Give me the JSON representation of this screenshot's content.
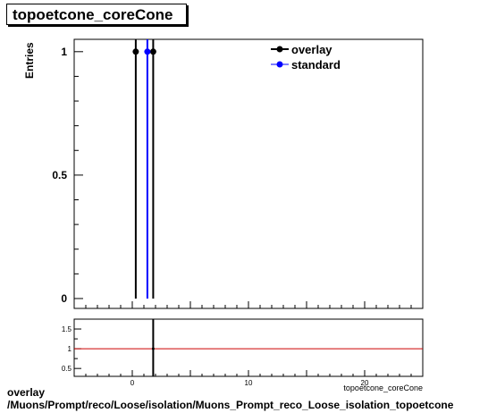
{
  "title": "topoetcone_coreCone",
  "footer": {
    "line1": "overlay",
    "line2": "/Muons/Prompt/reco/Loose/isolation/Muons_Prompt_reco_Loose_isolation_topoetcone"
  },
  "chart_data": [
    {
      "type": "scatter",
      "ylabel": "Entries",
      "xlabel": "topoetcone_coreCone",
      "xlim": [
        -5,
        25
      ],
      "ylim": [
        -0.04,
        1.05
      ],
      "yticks": [
        0,
        0.5,
        1
      ],
      "ytick_labels": [
        "0",
        "0.5",
        "1"
      ],
      "legend_position": "top-right",
      "series": [
        {
          "name": "overlay",
          "color": "#000000",
          "x": [
            0.3,
            1.8
          ],
          "y": [
            1,
            1
          ],
          "bar_to_zero": true
        },
        {
          "name": "standard",
          "color": "#0000ff",
          "x": [
            1.3
          ],
          "y": [
            1
          ],
          "bar_to_zero": true
        }
      ]
    },
    {
      "type": "line",
      "xlim": [
        -5,
        25
      ],
      "ylim": [
        0.3,
        1.75
      ],
      "xticks": [
        0,
        10,
        20
      ],
      "xtick_labels": [
        "0",
        "10",
        "20"
      ],
      "yticks": [
        0.5,
        1,
        1.5
      ],
      "ytick_labels": [
        "0.5",
        "1",
        "1.5"
      ],
      "reference_line": {
        "y": 1,
        "color": "#cc0000"
      },
      "markers": [
        {
          "x": 1.8,
          "y": 1,
          "color": "#000000"
        }
      ]
    }
  ]
}
